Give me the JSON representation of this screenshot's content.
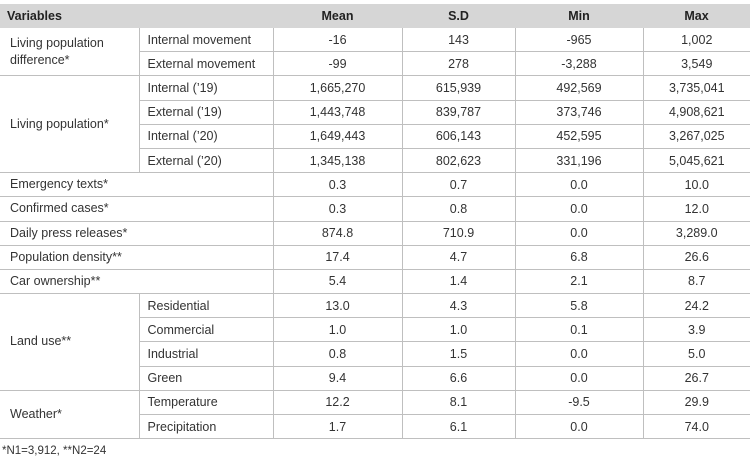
{
  "headers": {
    "variables": "Variables",
    "mean": "Mean",
    "sd": "S.D",
    "min": "Min",
    "max": "Max"
  },
  "rows": [
    {
      "group": "Living population difference*",
      "sub": "Internal movement",
      "mean": "-16",
      "sd": "143",
      "min": "-965",
      "max": "1,002"
    },
    {
      "group": "",
      "sub": "External movement",
      "mean": "-99",
      "sd": "278",
      "min": "-3,288",
      "max": "3,549"
    },
    {
      "group": "Living population*",
      "sub": "Internal (’19)",
      "mean": "1,665,270",
      "sd": "615,939",
      "min": "492,569",
      "max": "3,735,041"
    },
    {
      "group": "",
      "sub": "External (’19)",
      "mean": "1,443,748",
      "sd": "839,787",
      "min": "373,746",
      "max": "4,908,621"
    },
    {
      "group": "",
      "sub": "Internal (’20)",
      "mean": "1,649,443",
      "sd": "606,143",
      "min": "452,595",
      "max": "3,267,025"
    },
    {
      "group": "",
      "sub": "External (’20)",
      "mean": "1,345,138",
      "sd": "802,623",
      "min": "331,196",
      "max": "5,045,621"
    },
    {
      "group": "Emergency texts*",
      "sub": "",
      "mean": "0.3",
      "sd": "0.7",
      "min": "0.0",
      "max": "10.0"
    },
    {
      "group": "Confirmed cases*",
      "sub": "",
      "mean": "0.3",
      "sd": "0.8",
      "min": "0.0",
      "max": "12.0"
    },
    {
      "group": "Daily press releases*",
      "sub": "",
      "mean": "874.8",
      "sd": "710.9",
      "min": "0.0",
      "max": "3,289.0"
    },
    {
      "group": "Population density**",
      "sub": "",
      "mean": "17.4",
      "sd": "4.7",
      "min": "6.8",
      "max": "26.6"
    },
    {
      "group": "Car ownership**",
      "sub": "",
      "mean": "5.4",
      "sd": "1.4",
      "min": "2.1",
      "max": "8.7"
    },
    {
      "group": "Land use**",
      "sub": "Residential",
      "mean": "13.0",
      "sd": "4.3",
      "min": "5.8",
      "max": "24.2"
    },
    {
      "group": "",
      "sub": "Commercial",
      "mean": "1.0",
      "sd": "1.0",
      "min": "0.1",
      "max": "3.9"
    },
    {
      "group": "",
      "sub": "Industrial",
      "mean": "0.8",
      "sd": "1.5",
      "min": "0.0",
      "max": "5.0"
    },
    {
      "group": "",
      "sub": "Green",
      "mean": "9.4",
      "sd": "6.6",
      "min": "0.0",
      "max": "26.7"
    },
    {
      "group": "Weather*",
      "sub": "Temperature",
      "mean": "12.2",
      "sd": "8.1",
      "min": "-9.5",
      "max": "29.9"
    },
    {
      "group": "",
      "sub": "Precipitation",
      "mean": "1.7",
      "sd": "6.1",
      "min": "0.0",
      "max": "74.0"
    }
  ],
  "footnote": "*N1=3,912, **N2=24"
}
